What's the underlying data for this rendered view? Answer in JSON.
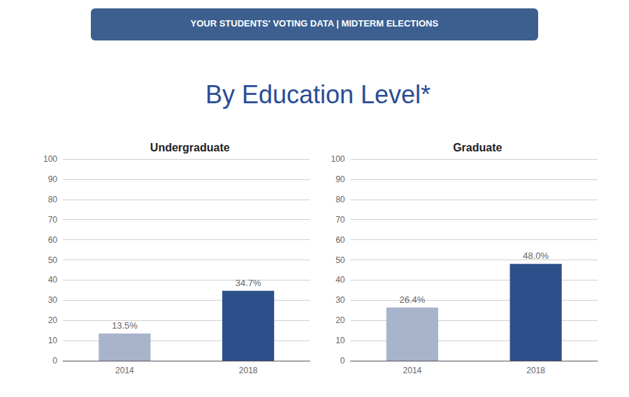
{
  "title": "By Education Level*",
  "annotations": [
    "YOUR STUDENTS' VOTING DATA | MIDTERM ELECTIONS"
  ],
  "chart_data": [
    {
      "type": "bar",
      "title": "Undergraduate",
      "categories": [
        "2014",
        "2018"
      ],
      "values": [
        13.5,
        34.7
      ],
      "value_labels": [
        "13.5%",
        "34.7%"
      ],
      "colors": [
        "#a8b4cc",
        "#2e508a"
      ],
      "ylim": [
        0,
        100
      ],
      "yticks": [
        0,
        10,
        20,
        30,
        40,
        50,
        60,
        70,
        80,
        90,
        100
      ],
      "grid": true,
      "data_labels": true
    },
    {
      "type": "bar",
      "title": "Graduate",
      "categories": [
        "2014",
        "2018"
      ],
      "values": [
        26.4,
        48.0
      ],
      "value_labels": [
        "26.4%",
        "48.0%"
      ],
      "colors": [
        "#a8b4cc",
        "#2e508a"
      ],
      "ylim": [
        0,
        100
      ],
      "yticks": [
        0,
        10,
        20,
        30,
        40,
        50,
        60,
        70,
        80,
        90,
        100
      ],
      "grid": true,
      "data_labels": true
    }
  ]
}
